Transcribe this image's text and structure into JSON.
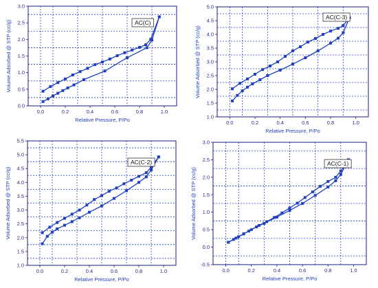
{
  "chart_data": [
    {
      "type": "line",
      "xlabel": "Relative Pressure, P/Po",
      "ylabel": "Volume Adsorbed @ STP (cc/g)",
      "xlim": [
        -0.1,
        1.1
      ],
      "ylim": [
        0.0,
        3.0
      ],
      "xticks": [
        "0.0",
        "0.2",
        "0.4",
        "0.6",
        "0.8",
        "1.0"
      ],
      "yticks": [
        "0.0",
        "0.5",
        "1.0",
        "1.5",
        "2.0",
        "2.5",
        "3.0"
      ],
      "grid": true,
      "legend": "top-center",
      "label": "AC(C)",
      "series": [
        {
          "points": [
            [
              0.02,
              0.13
            ],
            [
              0.06,
              0.21
            ],
            [
              0.1,
              0.3
            ],
            [
              0.14,
              0.38
            ],
            [
              0.18,
              0.46
            ],
            [
              0.22,
              0.54
            ],
            [
              0.27,
              0.63
            ],
            [
              0.35,
              0.79
            ],
            [
              0.52,
              1.05
            ],
            [
              0.7,
              1.45
            ],
            [
              0.86,
              1.75
            ],
            [
              0.9,
              1.98
            ],
            [
              0.96,
              2.68
            ]
          ]
        },
        {
          "points": [
            [
              0.02,
              0.44
            ],
            [
              0.08,
              0.58
            ],
            [
              0.14,
              0.7
            ],
            [
              0.2,
              0.81
            ],
            [
              0.26,
              0.93
            ],
            [
              0.32,
              1.03
            ],
            [
              0.38,
              1.13
            ],
            [
              0.44,
              1.24
            ],
            [
              0.5,
              1.32
            ],
            [
              0.56,
              1.41
            ],
            [
              0.62,
              1.51
            ],
            [
              0.68,
              1.6
            ],
            [
              0.74,
              1.68
            ],
            [
              0.8,
              1.76
            ],
            [
              0.85,
              1.84
            ],
            [
              0.89,
              2.0
            ],
            [
              0.96,
              2.68
            ]
          ]
        }
      ]
    },
    {
      "type": "line",
      "xlabel": "Relative Pressure, P/Po",
      "ylabel": "Volume Adsorbed @ STP (cc/g)",
      "xlim": [
        -0.1,
        1.1
      ],
      "ylim": [
        1.0,
        5.0
      ],
      "xticks": [
        "0.0",
        "0.2",
        "0.4",
        "0.6",
        "0.8",
        "1.0"
      ],
      "yticks": [
        "1.0",
        "1.5",
        "2.0",
        "2.5",
        "3.0",
        "3.5",
        "4.0",
        "4.5",
        "5.0"
      ],
      "grid": true,
      "legend": "top-right",
      "label": "AC(C-3)",
      "series": [
        {
          "points": [
            [
              0.02,
              1.58
            ],
            [
              0.06,
              1.78
            ],
            [
              0.1,
              1.95
            ],
            [
              0.14,
              2.08
            ],
            [
              0.18,
              2.2
            ],
            [
              0.24,
              2.35
            ],
            [
              0.3,
              2.5
            ],
            [
              0.4,
              2.7
            ],
            [
              0.5,
              2.92
            ],
            [
              0.6,
              3.15
            ],
            [
              0.7,
              3.4
            ],
            [
              0.8,
              3.68
            ],
            [
              0.86,
              3.86
            ],
            [
              0.9,
              4.06
            ],
            [
              0.95,
              4.6
            ]
          ]
        },
        {
          "points": [
            [
              0.02,
              2.02
            ],
            [
              0.08,
              2.22
            ],
            [
              0.14,
              2.38
            ],
            [
              0.2,
              2.55
            ],
            [
              0.26,
              2.72
            ],
            [
              0.32,
              2.85
            ],
            [
              0.38,
              3.0
            ],
            [
              0.44,
              3.2
            ],
            [
              0.5,
              3.4
            ],
            [
              0.56,
              3.55
            ],
            [
              0.62,
              3.72
            ],
            [
              0.68,
              3.85
            ],
            [
              0.74,
              4.0
            ],
            [
              0.8,
              4.12
            ],
            [
              0.86,
              4.22
            ],
            [
              0.9,
              4.32
            ],
            [
              0.95,
              4.6
            ]
          ]
        }
      ]
    },
    {
      "type": "line",
      "xlabel": "Relative Pressure, P/Po",
      "ylabel": "Volume Adsorbed @ STP (cc/g)",
      "xlim": [
        -0.1,
        1.1
      ],
      "ylim": [
        1.0,
        5.5
      ],
      "xticks": [
        "0.0",
        "0.2",
        "0.4",
        "0.6",
        "0.8",
        "1.0"
      ],
      "yticks": [
        "1.0",
        "1.5",
        "2.0",
        "2.5",
        "3.0",
        "3.5",
        "4.0",
        "4.5",
        "5.0",
        "5.5"
      ],
      "grid": true,
      "legend": "top-right",
      "label": "AC(C-2)",
      "series": [
        {
          "points": [
            [
              0.02,
              1.78
            ],
            [
              0.06,
              2.05
            ],
            [
              0.1,
              2.2
            ],
            [
              0.14,
              2.32
            ],
            [
              0.2,
              2.45
            ],
            [
              0.26,
              2.58
            ],
            [
              0.32,
              2.72
            ],
            [
              0.4,
              2.92
            ],
            [
              0.5,
              3.15
            ],
            [
              0.6,
              3.42
            ],
            [
              0.7,
              3.7
            ],
            [
              0.8,
              4.0
            ],
            [
              0.86,
              4.2
            ],
            [
              0.9,
              4.45
            ],
            [
              0.96,
              4.92
            ]
          ]
        },
        {
          "points": [
            [
              0.02,
              2.18
            ],
            [
              0.08,
              2.38
            ],
            [
              0.14,
              2.55
            ],
            [
              0.2,
              2.7
            ],
            [
              0.26,
              2.85
            ],
            [
              0.32,
              3.0
            ],
            [
              0.38,
              3.18
            ],
            [
              0.44,
              3.38
            ],
            [
              0.5,
              3.52
            ],
            [
              0.56,
              3.68
            ],
            [
              0.62,
              3.8
            ],
            [
              0.68,
              3.95
            ],
            [
              0.74,
              4.08
            ],
            [
              0.8,
              4.22
            ],
            [
              0.86,
              4.35
            ],
            [
              0.9,
              4.55
            ],
            [
              0.96,
              4.92
            ]
          ]
        }
      ]
    },
    {
      "type": "line",
      "xlabel": "Relative Pressure, P/Po",
      "ylabel": "Volume Adsorbed @ STP (cc/g)",
      "xlim": [
        -0.1,
        1.1
      ],
      "ylim": [
        -0.5,
        3.0
      ],
      "xticks": [
        "0.0",
        "0.2",
        "0.4",
        "0.6",
        "0.8",
        "1.0"
      ],
      "yticks": [
        "-0.5",
        "0.0",
        "0.5",
        "1.0",
        "1.5",
        "2.0",
        "2.5",
        "3.0"
      ],
      "grid": true,
      "legend": "top-right",
      "label": "AC(C-1)",
      "series": [
        {
          "points": [
            [
              0.02,
              0.14
            ],
            [
              0.06,
              0.22
            ],
            [
              0.1,
              0.3
            ],
            [
              0.14,
              0.38
            ],
            [
              0.18,
              0.46
            ],
            [
              0.24,
              0.58
            ],
            [
              0.3,
              0.68
            ],
            [
              0.4,
              0.86
            ],
            [
              0.5,
              1.05
            ],
            [
              0.6,
              1.25
            ],
            [
              0.7,
              1.48
            ],
            [
              0.8,
              1.72
            ],
            [
              0.86,
              1.9
            ],
            [
              0.9,
              2.08
            ],
            [
              0.96,
              2.5
            ]
          ]
        },
        {
          "points": [
            [
              0.02,
              0.14
            ],
            [
              0.08,
              0.26
            ],
            [
              0.14,
              0.38
            ],
            [
              0.2,
              0.5
            ],
            [
              0.26,
              0.62
            ],
            [
              0.32,
              0.73
            ],
            [
              0.38,
              0.85
            ],
            [
              0.44,
              0.98
            ],
            [
              0.5,
              1.12
            ],
            [
              0.56,
              1.26
            ],
            [
              0.62,
              1.42
            ],
            [
              0.68,
              1.58
            ],
            [
              0.74,
              1.74
            ],
            [
              0.8,
              1.88
            ],
            [
              0.86,
              2.0
            ],
            [
              0.9,
              2.18
            ],
            [
              0.96,
              2.5
            ]
          ]
        }
      ]
    }
  ]
}
